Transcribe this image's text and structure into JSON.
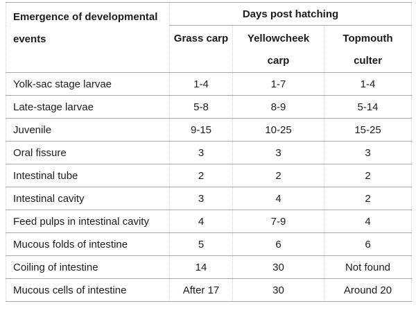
{
  "table": {
    "header": {
      "row_label_line1": "Emergence of developmental",
      "row_label_line2": "events",
      "group_label": "Days post hatching",
      "species": {
        "grass_carp": "Grass carp",
        "yellowcheek_line1": "Yellowcheek",
        "yellowcheek_line2": "carp",
        "topmouth_line1": "Topmouth",
        "topmouth_line2": "culter"
      }
    },
    "rows": [
      {
        "label": "Yolk-sac stage larvae",
        "grass_carp": "1-4",
        "yellowcheek_carp": "1-7",
        "topmouth_culter": "1-4"
      },
      {
        "label": "Late-stage larvae",
        "grass_carp": "5-8",
        "yellowcheek_carp": "8-9",
        "topmouth_culter": "5-14"
      },
      {
        "label": "Juvenile",
        "grass_carp": "9-15",
        "yellowcheek_carp": "10-25",
        "topmouth_culter": "15-25"
      },
      {
        "label": "Oral fissure",
        "grass_carp": "3",
        "yellowcheek_carp": "3",
        "topmouth_culter": "3"
      },
      {
        "label": "Intestinal tube",
        "grass_carp": "2",
        "yellowcheek_carp": "2",
        "topmouth_culter": "2"
      },
      {
        "label": "Intestinal cavity",
        "grass_carp": "3",
        "yellowcheek_carp": "4",
        "topmouth_culter": "2"
      },
      {
        "label": "Feed pulps in intestinal cavity",
        "grass_carp": "4",
        "yellowcheek_carp": "7-9",
        "topmouth_culter": "4"
      },
      {
        "label": "Mucous folds of intestine",
        "grass_carp": "5",
        "yellowcheek_carp": "6",
        "topmouth_culter": "6"
      },
      {
        "label": "Coiling of intestine",
        "grass_carp": "14",
        "yellowcheek_carp": "30",
        "topmouth_culter": "Not found"
      },
      {
        "label": "Mucous cells of intestine",
        "grass_carp": "After 17",
        "yellowcheek_carp": "30",
        "topmouth_culter": "Around 20"
      }
    ],
    "colors": {
      "text": "#1b1b1b",
      "horizontal_border": "#a8a8a8",
      "vertical_border": "#d4d4d4",
      "background": "#ffffff"
    }
  }
}
